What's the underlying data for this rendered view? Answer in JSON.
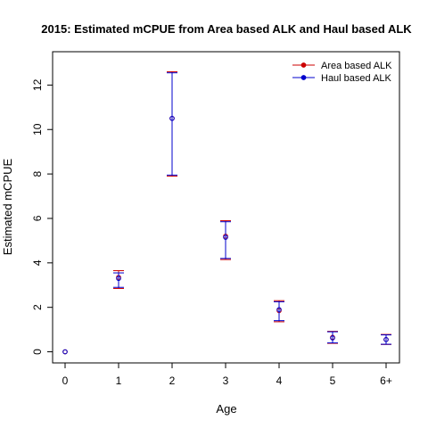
{
  "chart_data": {
    "type": "scatter",
    "title": "2015: Estimated mCPUE from Area based ALK and Haul based ALK",
    "xlabel": "Age",
    "ylabel": "Estimated mCPUE",
    "categories": [
      "0",
      "1",
      "2",
      "3",
      "4",
      "5",
      "6+"
    ],
    "ylim": [
      -0.5,
      13.5
    ],
    "yticks": [
      0,
      2,
      4,
      6,
      8,
      10,
      12
    ],
    "grid": false,
    "legend_position": "top-right",
    "series": [
      {
        "name": "Area based ALK",
        "color": "#cc0000",
        "values": [
          0.0,
          3.35,
          10.5,
          5.2,
          1.85,
          0.65,
          0.55
        ],
        "lower": [
          null,
          2.85,
          7.9,
          4.15,
          1.35,
          0.38,
          0.33
        ],
        "upper": [
          null,
          3.65,
          12.6,
          5.9,
          2.3,
          0.92,
          0.78
        ]
      },
      {
        "name": "Haul based ALK",
        "color": "#0000cc",
        "values": [
          0.0,
          3.3,
          10.5,
          5.15,
          1.9,
          0.62,
          0.55
        ],
        "lower": [
          null,
          2.9,
          7.95,
          4.2,
          1.4,
          0.4,
          0.34
        ],
        "upper": [
          null,
          3.55,
          12.55,
          5.85,
          2.25,
          0.9,
          0.76
        ]
      }
    ]
  }
}
